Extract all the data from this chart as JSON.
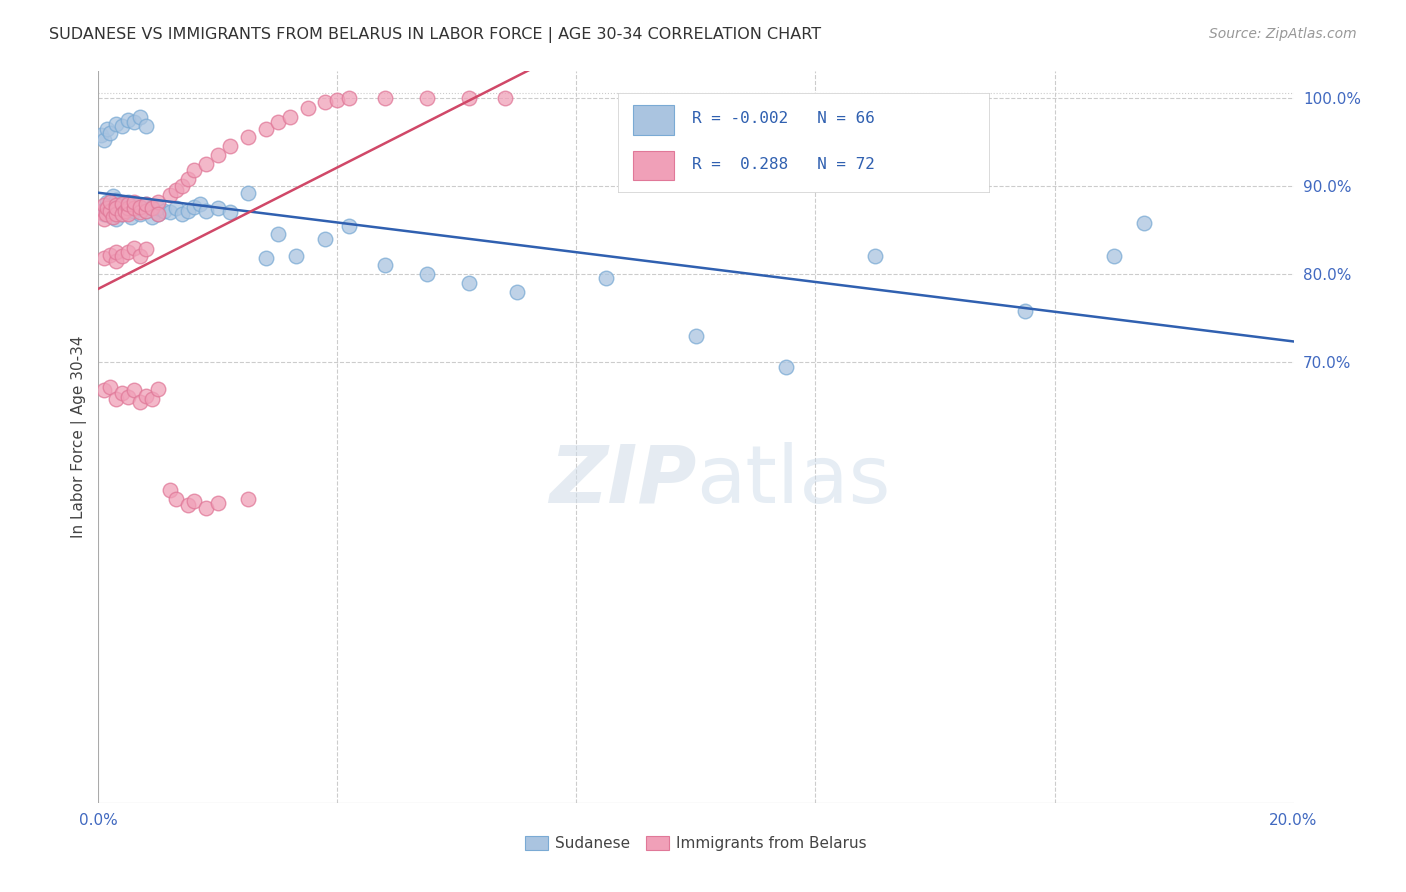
{
  "title": "SUDANESE VS IMMIGRANTS FROM BELARUS IN LABOR FORCE | AGE 30-34 CORRELATION CHART",
  "source": "Source: ZipAtlas.com",
  "ylabel": "In Labor Force | Age 30-34",
  "x_min": 0.0,
  "x_max": 0.2,
  "y_min": 0.2,
  "y_max": 1.03,
  "blue_color": "#aac4e0",
  "pink_color": "#f0a0b8",
  "blue_edge": "#7aaad4",
  "pink_edge": "#e07898",
  "blue_line_color": "#3060b0",
  "pink_line_color": "#d04868",
  "R_blue": -0.002,
  "N_blue": 66,
  "R_pink": 0.288,
  "N_pink": 72,
  "blue_x": [
    0.0005,
    0.001,
    0.0012,
    0.0015,
    0.002,
    0.002,
    0.0022,
    0.0025,
    0.003,
    0.003,
    0.003,
    0.0035,
    0.004,
    0.004,
    0.0045,
    0.005,
    0.005,
    0.005,
    0.0055,
    0.006,
    0.006,
    0.007,
    0.007,
    0.008,
    0.008,
    0.009,
    0.009,
    0.01,
    0.01,
    0.011,
    0.012,
    0.013,
    0.014,
    0.015,
    0.016,
    0.017,
    0.018,
    0.02,
    0.022,
    0.025,
    0.028,
    0.03,
    0.033,
    0.038,
    0.042,
    0.048,
    0.055,
    0.062,
    0.07,
    0.085,
    0.1,
    0.115,
    0.13,
    0.155,
    0.17,
    0.0005,
    0.001,
    0.0015,
    0.002,
    0.003,
    0.004,
    0.005,
    0.006,
    0.007,
    0.008,
    0.175
  ],
  "blue_y": [
    0.872,
    0.868,
    0.875,
    0.882,
    0.87,
    0.878,
    0.865,
    0.888,
    0.862,
    0.876,
    0.884,
    0.872,
    0.868,
    0.88,
    0.875,
    0.87,
    0.876,
    0.882,
    0.865,
    0.878,
    0.872,
    0.868,
    0.875,
    0.872,
    0.88,
    0.865,
    0.876,
    0.868,
    0.875,
    0.872,
    0.87,
    0.875,
    0.868,
    0.872,
    0.876,
    0.88,
    0.872,
    0.875,
    0.87,
    0.892,
    0.818,
    0.845,
    0.82,
    0.84,
    0.855,
    0.81,
    0.8,
    0.79,
    0.78,
    0.795,
    0.73,
    0.695,
    0.82,
    0.758,
    0.82,
    0.958,
    0.952,
    0.965,
    0.96,
    0.97,
    0.968,
    0.975,
    0.972,
    0.978,
    0.968,
    0.858
  ],
  "pink_x": [
    0.0005,
    0.001,
    0.001,
    0.0012,
    0.0015,
    0.002,
    0.002,
    0.0025,
    0.003,
    0.003,
    0.003,
    0.004,
    0.004,
    0.0045,
    0.005,
    0.005,
    0.005,
    0.006,
    0.006,
    0.007,
    0.007,
    0.008,
    0.008,
    0.009,
    0.01,
    0.01,
    0.012,
    0.013,
    0.014,
    0.015,
    0.016,
    0.018,
    0.02,
    0.022,
    0.025,
    0.028,
    0.03,
    0.032,
    0.035,
    0.038,
    0.04,
    0.042,
    0.048,
    0.055,
    0.062,
    0.068,
    0.001,
    0.002,
    0.003,
    0.003,
    0.004,
    0.005,
    0.006,
    0.007,
    0.008,
    0.001,
    0.002,
    0.003,
    0.004,
    0.005,
    0.006,
    0.007,
    0.008,
    0.009,
    0.01,
    0.012,
    0.013,
    0.015,
    0.016,
    0.018,
    0.02,
    0.025
  ],
  "pink_y": [
    0.87,
    0.862,
    0.878,
    0.868,
    0.875,
    0.872,
    0.882,
    0.865,
    0.878,
    0.868,
    0.875,
    0.88,
    0.868,
    0.872,
    0.875,
    0.868,
    0.88,
    0.875,
    0.882,
    0.87,
    0.876,
    0.872,
    0.88,
    0.875,
    0.882,
    0.868,
    0.89,
    0.895,
    0.9,
    0.908,
    0.918,
    0.925,
    0.935,
    0.945,
    0.955,
    0.965,
    0.972,
    0.978,
    0.988,
    0.995,
    0.998,
    1.0,
    1.0,
    1.0,
    1.0,
    1.0,
    0.818,
    0.822,
    0.815,
    0.825,
    0.82,
    0.825,
    0.83,
    0.82,
    0.828,
    0.668,
    0.672,
    0.658,
    0.665,
    0.66,
    0.668,
    0.655,
    0.662,
    0.658,
    0.67,
    0.555,
    0.545,
    0.538,
    0.542,
    0.535,
    0.54,
    0.545
  ]
}
